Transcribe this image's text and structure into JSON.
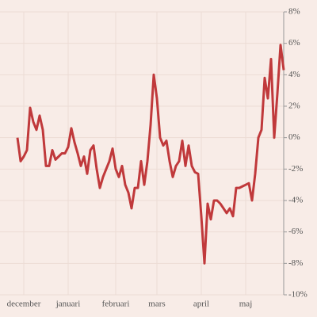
{
  "chart_data": {
    "type": "line",
    "categories": [
      null,
      null,
      "december",
      null,
      null,
      null,
      null,
      null,
      null,
      null,
      null,
      null,
      null,
      null,
      null,
      null,
      "januari",
      null,
      null,
      null,
      null,
      null,
      null,
      null,
      null,
      null,
      null,
      null,
      null,
      null,
      null,
      "februari",
      null,
      null,
      null,
      null,
      null,
      null,
      null,
      null,
      null,
      null,
      null,
      null,
      "mars",
      null,
      null,
      null,
      null,
      null,
      null,
      null,
      null,
      null,
      null,
      null,
      null,
      null,
      "april",
      null,
      null,
      null,
      null,
      null,
      null,
      null,
      null,
      null,
      null,
      null,
      null,
      null,
      "maj",
      null,
      null,
      null,
      null,
      null,
      null,
      null,
      null,
      null,
      null,
      null,
      null
    ],
    "series": [
      {
        "color": "#c0393b",
        "values": [
          0,
          -1.5,
          -1.2,
          -0.8,
          1.9,
          1,
          0.5,
          1.4,
          0.5,
          -1.8,
          -1.8,
          -0.8,
          -1.4,
          -1.2,
          -1,
          -1,
          -0.6,
          0.6,
          -0.3,
          -1,
          -1.8,
          -1.2,
          -2.3,
          -0.8,
          -0.5,
          -2,
          -3.2,
          -2.5,
          -2,
          -1.5,
          -0.7,
          -2,
          -2.5,
          -1.8,
          -3,
          -3.5,
          -4.5,
          -3.2,
          -3.2,
          -1.5,
          -3,
          -1.5,
          0.8,
          4,
          2.5,
          0,
          -0.5,
          -0.2,
          -1.5,
          -2.5,
          -1.8,
          -1.5,
          -0.2,
          -1.8,
          -0.5,
          -1.8,
          -2.2,
          -2.3,
          -5,
          -8,
          -4.2,
          -5.2,
          -4,
          -4,
          -4.2,
          -4.5,
          -4.8,
          -4.5,
          -5,
          -3.2,
          -3.2,
          -3.1,
          -3,
          -2.9,
          -4,
          -2.3,
          0,
          0.5,
          3.8,
          2.5,
          5,
          0,
          2.8,
          5.9,
          4.3
        ]
      }
    ],
    "ylim": [
      -10,
      8
    ],
    "yticks": [
      {
        "value": 8,
        "label": "8%"
      },
      {
        "value": 6,
        "label": "6%"
      },
      {
        "value": 4,
        "label": "4%"
      },
      {
        "value": 2,
        "label": "2%"
      },
      {
        "value": 0,
        "label": "0%"
      },
      {
        "value": -2,
        "label": "-2%"
      },
      {
        "value": -4,
        "label": "-4%"
      },
      {
        "value": -6,
        "label": "-6%"
      },
      {
        "value": -8,
        "label": "-8%"
      },
      {
        "value": -10,
        "label": "-10%"
      }
    ],
    "grid": true
  }
}
